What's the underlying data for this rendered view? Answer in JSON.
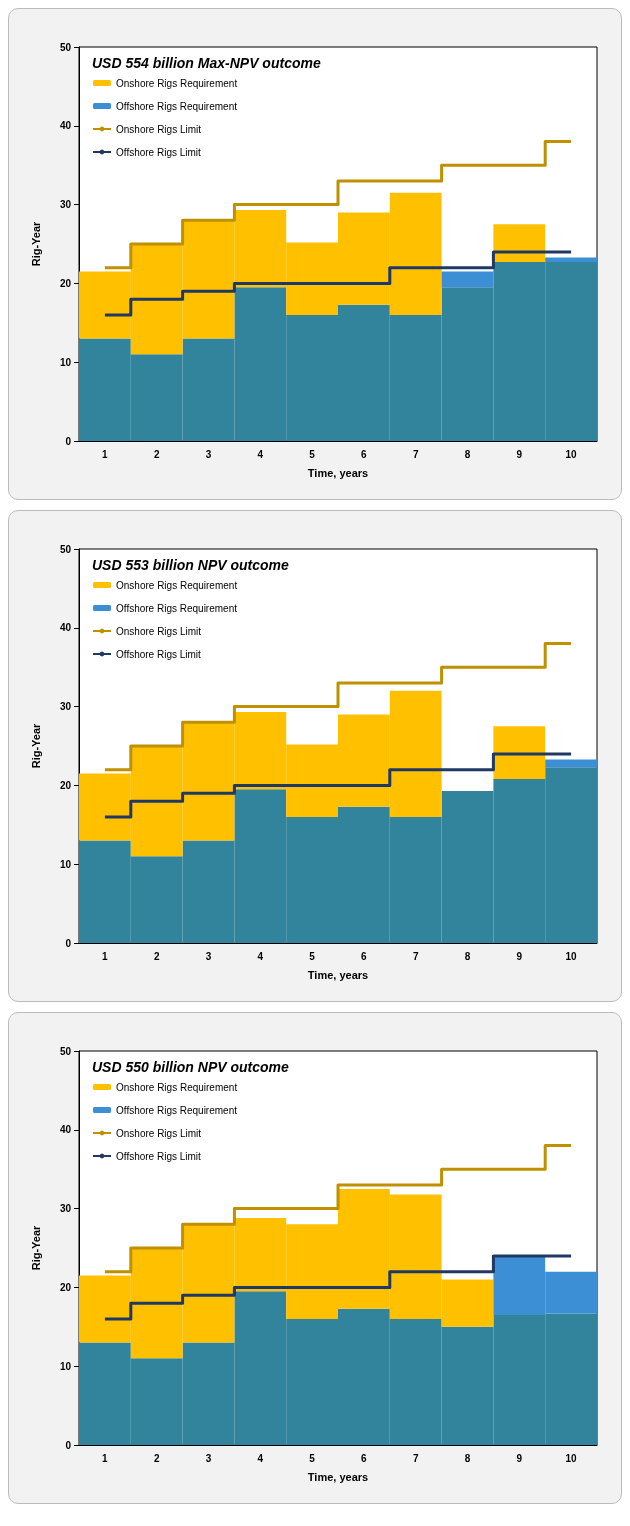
{
  "chart_data": [
    {
      "type": "bar",
      "title": "USD 554 billion Max-NPV outcome",
      "xlabel": "Time, years",
      "ylabel": "Rig-Year",
      "categories": [
        "1",
        "2",
        "3",
        "4",
        "5",
        "6",
        "7",
        "8",
        "9",
        "10"
      ],
      "stacked": true,
      "ylim": [
        0,
        50
      ],
      "yticks": [
        0,
        10,
        20,
        30,
        40,
        50
      ],
      "grid": false,
      "legend": "top left",
      "series": [
        {
          "color": "#31849b",
          "values": [
            13,
            11,
            13,
            19.5,
            16,
            17.3,
            16,
            19.5,
            22.7,
            22.7
          ]
        },
        {
          "name": "Onshore Rigs Requirement",
          "color": "#ffc000",
          "values": [
            8.5,
            14,
            15,
            9.8,
            9.2,
            11.7,
            15.5,
            null,
            4.8,
            null
          ]
        },
        {
          "name": "Offshore Rigs Requirement",
          "color": "#3c8fd4",
          "values": [
            null,
            null,
            null,
            null,
            null,
            null,
            null,
            2,
            null,
            0.6
          ]
        },
        {
          "name": "Onshore Rigs Limit",
          "type": "step",
          "color": "#bf9000",
          "values": [
            22,
            25,
            28,
            30,
            30,
            33,
            33,
            35,
            35,
            38
          ]
        },
        {
          "name": "Offshore Rigs Limit",
          "type": "step",
          "color": "#1f3864",
          "values": [
            16,
            18,
            19,
            20,
            20,
            20,
            22,
            22,
            24,
            24
          ]
        }
      ]
    },
    {
      "type": "bar",
      "title": "USD 553 billion NPV outcome",
      "xlabel": "Time, years",
      "ylabel": "Rig-Year",
      "categories": [
        "1",
        "2",
        "3",
        "4",
        "5",
        "6",
        "7",
        "8",
        "9",
        "10"
      ],
      "stacked": true,
      "ylim": [
        0,
        50
      ],
      "yticks": [
        0,
        10,
        20,
        30,
        40,
        50
      ],
      "grid": false,
      "legend": "top left",
      "series": [
        {
          "color": "#31849b",
          "values": [
            13,
            11,
            13,
            19.5,
            16,
            17.3,
            16,
            19.3,
            20.8,
            22.3
          ]
        },
        {
          "name": "Onshore Rigs Requirement",
          "color": "#ffc000",
          "values": [
            8.5,
            14,
            15,
            9.8,
            9.2,
            11.7,
            16,
            null,
            6.7,
            null
          ]
        },
        {
          "name": "Offshore Rigs Requirement",
          "color": "#3c8fd4",
          "values": [
            null,
            null,
            null,
            null,
            null,
            null,
            null,
            null,
            null,
            1
          ]
        },
        {
          "name": "Onshore Rigs Limit",
          "type": "step",
          "color": "#bf9000",
          "values": [
            22,
            25,
            28,
            30,
            30,
            33,
            33,
            35,
            35,
            38
          ]
        },
        {
          "name": "Offshore Rigs Limit",
          "type": "step",
          "color": "#1f3864",
          "values": [
            16,
            18,
            19,
            20,
            20,
            20,
            22,
            22,
            24,
            24
          ]
        }
      ]
    },
    {
      "type": "bar",
      "title": "USD 550 billion NPV outcome",
      "xlabel": "Time, years",
      "ylabel": "Rig-Year",
      "categories": [
        "1",
        "2",
        "3",
        "4",
        "5",
        "6",
        "7",
        "8",
        "9",
        "10"
      ],
      "stacked": true,
      "ylim": [
        0,
        50
      ],
      "yticks": [
        0,
        10,
        20,
        30,
        40,
        50
      ],
      "grid": false,
      "legend": "top left",
      "series": [
        {
          "color": "#31849b",
          "values": [
            13,
            11,
            13,
            19.5,
            16,
            17.3,
            16,
            15,
            16.5,
            16.7
          ]
        },
        {
          "name": "Onshore Rigs Requirement",
          "color": "#ffc000",
          "values": [
            8.5,
            14,
            15,
            9.3,
            12,
            15.2,
            15.8,
            6,
            null,
            null
          ]
        },
        {
          "name": "Offshore Rigs Requirement",
          "color": "#3c8fd4",
          "values": [
            null,
            null,
            null,
            null,
            null,
            null,
            null,
            null,
            7.5,
            5.3
          ]
        },
        {
          "name": "Onshore Rigs Limit",
          "type": "step",
          "color": "#bf9000",
          "values": [
            22,
            25,
            28,
            30,
            30,
            33,
            33,
            35,
            35,
            38
          ]
        },
        {
          "name": "Offshore Rigs Limit",
          "type": "step",
          "color": "#1f3864",
          "values": [
            16,
            18,
            19,
            20,
            20,
            20,
            22,
            22,
            24,
            24
          ]
        }
      ]
    }
  ]
}
